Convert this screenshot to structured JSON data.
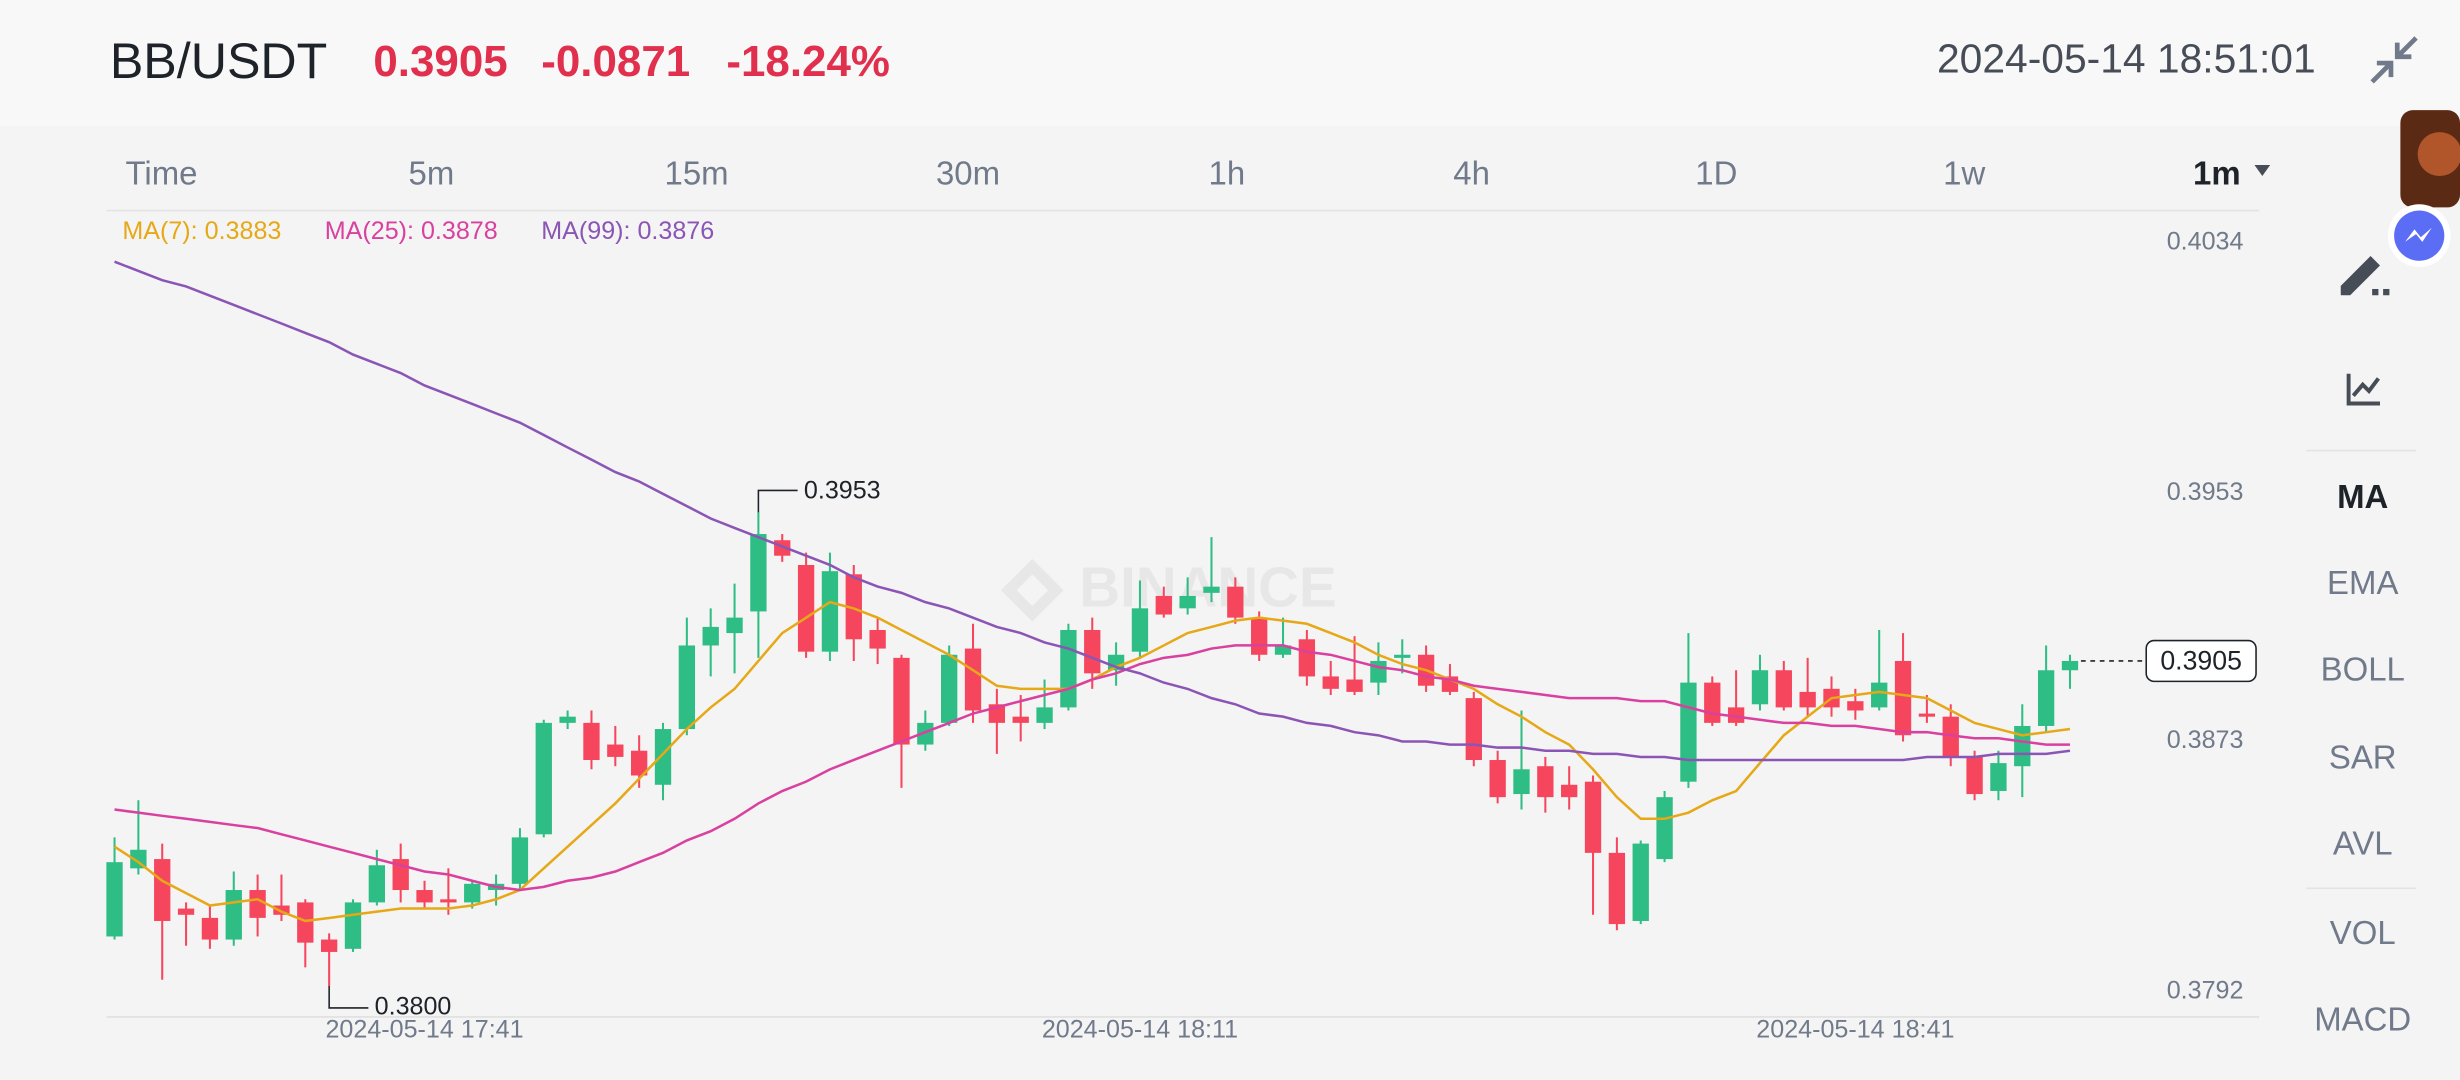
{
  "header": {
    "pair": "BB/USDT",
    "price": "0.3905",
    "change": "-0.0871",
    "change_pct": "-18.24%",
    "timestamp": "2024-05-14 18:51:01"
  },
  "intervals": {
    "items": [
      "Time",
      "5m",
      "15m",
      "30m",
      "1h",
      "4h",
      "1D",
      "1w",
      "1m"
    ],
    "selected": 8
  },
  "indicators": {
    "items": [
      "MA",
      "EMA",
      "BOLL",
      "SAR",
      "AVL",
      "VOL",
      "MACD"
    ],
    "selected": 0
  },
  "chart_data": {
    "type": "candlestick",
    "watermark": "BINANCE",
    "categories": [
      null,
      null,
      null,
      null,
      null,
      null,
      null,
      null,
      null,
      null,
      null,
      null,
      null,
      "2024-05-14 17:41",
      null,
      null,
      null,
      null,
      null,
      null,
      null,
      null,
      null,
      null,
      null,
      null,
      null,
      null,
      null,
      null,
      null,
      null,
      null,
      null,
      null,
      null,
      null,
      null,
      null,
      null,
      null,
      null,
      null,
      "2024-05-14 18:11",
      null,
      null,
      null,
      null,
      null,
      null,
      null,
      null,
      null,
      null,
      null,
      null,
      null,
      null,
      null,
      null,
      null,
      null,
      null,
      null,
      null,
      null,
      null,
      null,
      null,
      null,
      null,
      null,
      null,
      "2024-05-14 18:41",
      null,
      null,
      null,
      null,
      null,
      null,
      null,
      null,
      null
    ],
    "open": [
      0.3816,
      0.3838,
      0.3841,
      0.3825,
      0.3822,
      0.3815,
      0.3831,
      0.3826,
      0.3827,
      0.3815,
      0.3812,
      0.3827,
      0.3841,
      0.3831,
      0.3828,
      0.3827,
      0.3831,
      0.3833,
      0.3849,
      0.3885,
      0.3885,
      0.3878,
      0.3876,
      0.3865,
      0.3883,
      0.391,
      0.3914,
      0.3921,
      0.3944,
      0.3936,
      0.3908,
      0.3933,
      0.3915,
      0.3906,
      0.3878,
      0.3885,
      0.3909,
      0.3891,
      0.3887,
      0.3885,
      0.389,
      0.3915,
      0.3902,
      0.3908,
      0.3926,
      0.3922,
      0.3927,
      0.3929,
      0.3919,
      0.3907,
      0.3912,
      0.39,
      0.3899,
      0.3898,
      0.3906,
      0.3907,
      0.39,
      0.3893,
      0.3873,
      0.3862,
      0.3871,
      0.3865,
      0.3866,
      0.3843,
      0.3821,
      0.3841,
      0.3866,
      0.3898,
      0.389,
      0.3891,
      0.3902,
      0.3895,
      0.3896,
      0.3892,
      0.389,
      0.3905,
      0.3888,
      0.3887,
      0.3874,
      0.3863,
      0.3871,
      0.3884,
      0.3902
    ],
    "high": [
      0.3848,
      0.386,
      0.3846,
      0.3827,
      0.3826,
      0.3837,
      0.3836,
      0.3836,
      0.3828,
      0.3817,
      0.3828,
      0.3844,
      0.3846,
      0.3834,
      0.3838,
      0.3834,
      0.3836,
      0.3851,
      0.3886,
      0.3889,
      0.3889,
      0.3884,
      0.3881,
      0.3885,
      0.3919,
      0.3922,
      0.393,
      0.3953,
      0.3946,
      0.394,
      0.394,
      0.3936,
      0.3919,
      0.3907,
      0.3889,
      0.391,
      0.3917,
      0.3896,
      0.3894,
      0.3899,
      0.3917,
      0.3919,
      0.3911,
      0.3931,
      0.3929,
      0.3932,
      0.3945,
      0.3932,
      0.3921,
      0.3919,
      0.3915,
      0.3905,
      0.3913,
      0.3911,
      0.3912,
      0.391,
      0.3904,
      0.3895,
      0.3876,
      0.3889,
      0.3874,
      0.3871,
      0.3868,
      0.3848,
      0.3847,
      0.3863,
      0.3914,
      0.39,
      0.3902,
      0.3907,
      0.3905,
      0.3906,
      0.39,
      0.3896,
      0.3915,
      0.3914,
      0.3894,
      0.3891,
      0.3876,
      0.3876,
      0.3891,
      0.391,
      0.3907
    ],
    "low": [
      0.3815,
      0.3836,
      0.3802,
      0.3813,
      0.3812,
      0.3813,
      0.3816,
      0.3821,
      0.3806,
      0.38,
      0.3811,
      0.3826,
      0.3827,
      0.3825,
      0.3823,
      0.3825,
      0.3826,
      0.3831,
      0.3848,
      0.3883,
      0.387,
      0.3871,
      0.3864,
      0.386,
      0.3881,
      0.39,
      0.3901,
      0.3906,
      0.3937,
      0.3906,
      0.3905,
      0.3905,
      0.3904,
      0.3864,
      0.3876,
      0.3884,
      0.3885,
      0.3875,
      0.3879,
      0.3883,
      0.3889,
      0.3896,
      0.3897,
      0.3906,
      0.3919,
      0.392,
      0.3924,
      0.3917,
      0.3905,
      0.3906,
      0.3897,
      0.3894,
      0.3894,
      0.3894,
      0.3901,
      0.3895,
      0.3894,
      0.3871,
      0.3859,
      0.3857,
      0.3856,
      0.3857,
      0.3823,
      0.3818,
      0.382,
      0.384,
      0.3864,
      0.3884,
      0.3884,
      0.3889,
      0.3889,
      0.3887,
      0.3887,
      0.3886,
      0.3889,
      0.3879,
      0.3885,
      0.3871,
      0.386,
      0.386,
      0.3861,
      0.3882,
      0.3896
    ],
    "close": [
      0.384,
      0.3844,
      0.3821,
      0.3823,
      0.3815,
      0.3831,
      0.3822,
      0.3823,
      0.3814,
      0.3811,
      0.3827,
      0.3839,
      0.3831,
      0.3827,
      0.3827,
      0.3833,
      0.3833,
      0.3848,
      0.3885,
      0.3887,
      0.3873,
      0.3874,
      0.3868,
      0.3883,
      0.391,
      0.3916,
      0.3919,
      0.3946,
      0.3939,
      0.3908,
      0.3934,
      0.3912,
      0.3909,
      0.3878,
      0.3885,
      0.3907,
      0.3889,
      0.3885,
      0.3885,
      0.389,
      0.3915,
      0.3901,
      0.3907,
      0.3922,
      0.392,
      0.3926,
      0.3929,
      0.3919,
      0.3907,
      0.391,
      0.39,
      0.3896,
      0.3895,
      0.3905,
      0.3907,
      0.3897,
      0.3895,
      0.3873,
      0.3861,
      0.387,
      0.3861,
      0.3861,
      0.3843,
      0.382,
      0.3846,
      0.3861,
      0.3898,
      0.3885,
      0.3885,
      0.3902,
      0.389,
      0.389,
      0.389,
      0.3889,
      0.3898,
      0.3881,
      0.3887,
      0.3874,
      0.3862,
      0.3872,
      0.3884,
      0.3902,
      0.3905
    ],
    "up_color": "#2ebd85",
    "down_color": "#f6465d",
    "series": [
      {
        "name": "MA(7): 0.3883",
        "color": "#e6a817",
        "values": [
          0.3845,
          0.384,
          0.3834,
          0.383,
          0.3826,
          0.3827,
          0.3828,
          0.3824,
          0.3821,
          0.3822,
          0.3823,
          0.3824,
          0.3825,
          0.3825,
          0.3825,
          0.3826,
          0.3828,
          0.3831,
          0.3838,
          0.3845,
          0.3852,
          0.3859,
          0.3867,
          0.3875,
          0.3883,
          0.389,
          0.3896,
          0.3905,
          0.3914,
          0.3919,
          0.3924,
          0.3922,
          0.3919,
          0.3915,
          0.3911,
          0.3907,
          0.3902,
          0.3897,
          0.3896,
          0.3896,
          0.3896,
          0.3899,
          0.3903,
          0.3906,
          0.391,
          0.3914,
          0.3916,
          0.3918,
          0.3919,
          0.3918,
          0.3917,
          0.3914,
          0.3911,
          0.3907,
          0.3904,
          0.3902,
          0.3899,
          0.3896,
          0.3891,
          0.3887,
          0.3882,
          0.3878,
          0.387,
          0.3861,
          0.3854,
          0.3854,
          0.3856,
          0.386,
          0.3863,
          0.3872,
          0.3881,
          0.3887,
          0.3893,
          0.3894,
          0.3895,
          0.3894,
          0.3893,
          0.3889,
          0.3885,
          0.3883,
          0.3881,
          0.3882,
          0.3883
        ]
      },
      {
        "name": "MA(25): 0.3878",
        "color": "#d9409f",
        "values": [
          0.3857,
          0.3856,
          0.3855,
          0.3854,
          0.3853,
          0.3852,
          0.3851,
          0.3849,
          0.3847,
          0.3845,
          0.3843,
          0.3841,
          0.3839,
          0.3837,
          0.3836,
          0.3834,
          0.3832,
          0.3831,
          0.3832,
          0.3834,
          0.3835,
          0.3837,
          0.384,
          0.3843,
          0.3847,
          0.385,
          0.3854,
          0.3859,
          0.3863,
          0.3866,
          0.387,
          0.3873,
          0.3876,
          0.3879,
          0.3882,
          0.3885,
          0.3888,
          0.389,
          0.3892,
          0.3894,
          0.3896,
          0.3899,
          0.3901,
          0.3904,
          0.3906,
          0.3907,
          0.3909,
          0.391,
          0.391,
          0.391,
          0.3908,
          0.3907,
          0.3905,
          0.3903,
          0.3902,
          0.39,
          0.3899,
          0.3897,
          0.3896,
          0.3895,
          0.3894,
          0.3893,
          0.3893,
          0.3893,
          0.3892,
          0.3892,
          0.389,
          0.3888,
          0.3887,
          0.3886,
          0.3885,
          0.3885,
          0.3884,
          0.3884,
          0.3883,
          0.3882,
          0.3882,
          0.3881,
          0.388,
          0.388,
          0.3879,
          0.3878,
          0.3878
        ]
      },
      {
        "name": "MA(99): 0.3876",
        "color": "#8b55b5",
        "values": [
          0.4034,
          0.4031,
          0.4028,
          0.4026,
          0.4023,
          0.402,
          0.4017,
          0.4014,
          0.4011,
          0.4008,
          0.4004,
          0.4001,
          0.3998,
          0.3994,
          0.3991,
          0.3988,
          0.3985,
          0.3982,
          0.3978,
          0.3974,
          0.397,
          0.3966,
          0.3963,
          0.3959,
          0.3955,
          0.3951,
          0.3948,
          0.3945,
          0.3942,
          0.3939,
          0.3936,
          0.3932,
          0.3929,
          0.3927,
          0.3924,
          0.3922,
          0.3919,
          0.3916,
          0.3914,
          0.3911,
          0.3909,
          0.3906,
          0.3903,
          0.3901,
          0.3898,
          0.3896,
          0.3893,
          0.3891,
          0.3888,
          0.3887,
          0.3885,
          0.3884,
          0.3882,
          0.3881,
          0.3879,
          0.3879,
          0.3878,
          0.3878,
          0.3877,
          0.3877,
          0.3876,
          0.3876,
          0.3875,
          0.3875,
          0.3874,
          0.3874,
          0.3873,
          0.3873,
          0.3873,
          0.3873,
          0.3873,
          0.3873,
          0.3873,
          0.3873,
          0.3873,
          0.3873,
          0.3874,
          0.3874,
          0.3874,
          0.3875,
          0.3875,
          0.3875,
          0.3876
        ]
      }
    ],
    "ylim": [
      0.379,
      0.405
    ],
    "yticks": [
      0.4034,
      0.3953,
      0.3873,
      0.3792
    ],
    "grid": false,
    "high_marker": 0.3953,
    "low_marker": {
      "value": 0.38,
      "label": "0.3800"
    },
    "last_price": 0.3905
  }
}
